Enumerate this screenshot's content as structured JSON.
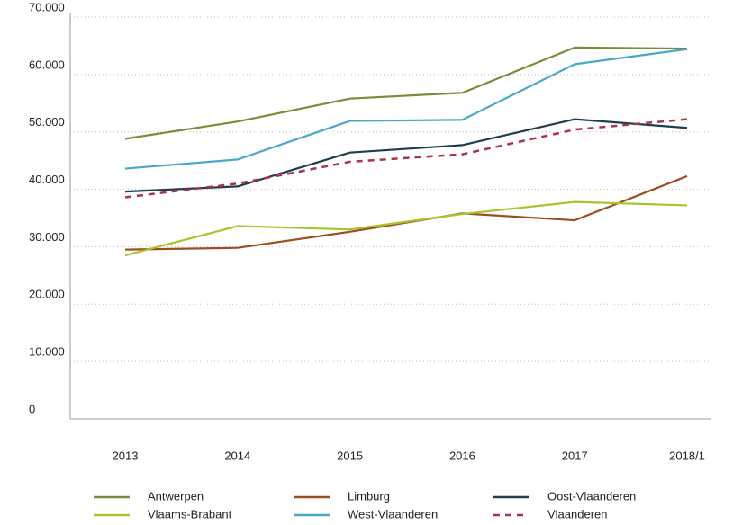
{
  "chart_data": {
    "type": "line",
    "categories": [
      "2013",
      "2014",
      "2015",
      "2016",
      "2017",
      "2018/1"
    ],
    "series": [
      {
        "name": "Antwerpen",
        "color": "#768f3a",
        "values": [
          48800,
          51800,
          55800,
          56800,
          64700,
          64500
        ]
      },
      {
        "name": "Limburg",
        "color": "#9a4f22",
        "values": [
          29500,
          29800,
          32600,
          35800,
          34600,
          42300
        ]
      },
      {
        "name": "Oost-Vlaanderen",
        "color": "#1f3d4f",
        "values": [
          39600,
          40500,
          46400,
          47700,
          52200,
          50700
        ]
      },
      {
        "name": "Vlaams-Brabant",
        "color": "#a9c42a",
        "values": [
          28500,
          33600,
          33000,
          35700,
          37800,
          37200
        ]
      },
      {
        "name": "West-Vlaanderen",
        "color": "#4aa8c4",
        "values": [
          43600,
          45200,
          51900,
          52100,
          61800,
          64400
        ]
      },
      {
        "name": "Vlaanderen",
        "color": "#a8354f",
        "style": "dashed",
        "values": [
          38600,
          41000,
          44800,
          46100,
          50400,
          52200
        ]
      }
    ],
    "ylim": [
      0,
      70000
    ],
    "yticks": [
      0,
      {
        "value": 10000,
        "label": "10.000"
      },
      {
        "value": 20000,
        "label": "20.000"
      },
      {
        "value": 30000,
        "label": "30.000"
      },
      {
        "value": 40000,
        "label": "40.000"
      },
      {
        "value": 50000,
        "label": "50.000"
      },
      {
        "value": 60000,
        "label": "60.000"
      },
      {
        "value": 70000,
        "label": "70.000"
      }
    ],
    "grid": true,
    "legend": "bottom"
  }
}
